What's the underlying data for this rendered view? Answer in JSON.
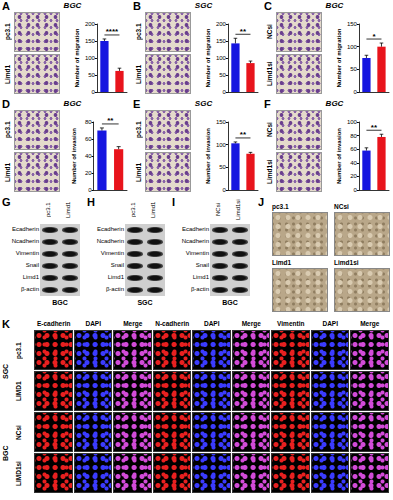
{
  "chart_data": [
    {
      "type": "bar",
      "panel": "A",
      "title": "BGC",
      "categories": [
        "pc3.1",
        "Limd1"
      ],
      "values": [
        150,
        62
      ],
      "errors": [
        6,
        8
      ],
      "colors": [
        "#1616e0",
        "#e8141c"
      ],
      "ylabel": "Number of migration",
      "ylim": [
        0,
        200
      ],
      "yticks": [
        0,
        50,
        100,
        150,
        200
      ],
      "significance": "****",
      "grid": false,
      "tick_labels": "y"
    },
    {
      "type": "bar",
      "panel": "B",
      "title": "SGC",
      "categories": [
        "pc3.1",
        "Limd1"
      ],
      "values": [
        143,
        85
      ],
      "errors": [
        15,
        6
      ],
      "colors": [
        "#1616e0",
        "#e8141c"
      ],
      "ylabel": "Number of migration",
      "ylim": [
        0,
        200
      ],
      "yticks": [
        0,
        50,
        100,
        150,
        200
      ],
      "significance": "**",
      "grid": false,
      "tick_labels": "y"
    },
    {
      "type": "bar",
      "panel": "C",
      "title": "BGC",
      "categories": [
        "NCsi",
        "Limd1si"
      ],
      "values": [
        75,
        100
      ],
      "errors": [
        6,
        8
      ],
      "colors": [
        "#1616e0",
        "#e8141c"
      ],
      "ylabel": "Number of migration",
      "ylim": [
        0,
        150
      ],
      "yticks": [
        0,
        50,
        100,
        150
      ],
      "significance": "*",
      "grid": false,
      "tick_labels": "y"
    },
    {
      "type": "bar",
      "panel": "D",
      "title": "BGC",
      "categories": [
        "pc3.1",
        "Limd1"
      ],
      "values": [
        70,
        48
      ],
      "errors": [
        3,
        3
      ],
      "colors": [
        "#1616e0",
        "#e8141c"
      ],
      "ylabel": "Number of invasion",
      "ylim": [
        0,
        80
      ],
      "yticks": [
        0,
        20,
        40,
        60,
        80
      ],
      "significance": "**",
      "grid": false,
      "tick_labels": "y"
    },
    {
      "type": "bar",
      "panel": "E",
      "title": "SGC",
      "categories": [
        "pc3.1",
        "Limd1"
      ],
      "values": [
        103,
        80
      ],
      "errors": [
        3,
        3
      ],
      "colors": [
        "#1616e0",
        "#e8141c"
      ],
      "ylabel": "Number of invasion",
      "ylim": [
        0,
        150
      ],
      "yticks": [
        0,
        50,
        100,
        150
      ],
      "significance": "**",
      "grid": false,
      "tick_labels": "y"
    },
    {
      "type": "bar",
      "panel": "F",
      "title": "BGC",
      "categories": [
        "NCsi",
        "Limd1si"
      ],
      "values": [
        58,
        78
      ],
      "errors": [
        4,
        4
      ],
      "colors": [
        "#1616e0",
        "#e8141c"
      ],
      "ylabel": "Number of invasion",
      "ylim": [
        0,
        100
      ],
      "yticks": [
        0,
        20,
        40,
        60,
        80,
        100
      ],
      "significance": "**",
      "grid": false,
      "tick_labels": "y"
    }
  ],
  "figure": {
    "blots": [
      {
        "panel": "G",
        "cell": "BGC",
        "lanes": [
          "pc3.1",
          "Limd1"
        ],
        "proteins": [
          "Ecadherin",
          "Ncadherin",
          "Vimentin",
          "Snail",
          "Limd1",
          "β-actin"
        ]
      },
      {
        "panel": "H",
        "cell": "SGC",
        "lanes": [
          "pc3.1",
          "Limd1"
        ],
        "proteins": [
          "Ecadherin",
          "Ncadherin",
          "Vimentin",
          "Snail",
          "Limd1",
          "β-actin"
        ]
      },
      {
        "panel": "I",
        "cell": "BGC",
        "lanes": [
          "NCsi",
          "Limd1si"
        ],
        "proteins": [
          "Ecadherin",
          "Ncadherin",
          "Vimentin",
          "Snail",
          "Limd1",
          "β-actin"
        ]
      }
    ],
    "images": {
      "panel": "J",
      "labels": [
        "pc3.1",
        "NCsi",
        "Limd1",
        "Limd1si"
      ]
    },
    "immunofluorescence": {
      "panel": "K",
      "columns": [
        "E-cadherin",
        "DAPI",
        "Merge",
        "N-cadherin",
        "DAPI",
        "Merge",
        "Vimentin",
        "DAPI",
        "Merge"
      ],
      "groups": [
        {
          "name": "SGC",
          "rows": [
            "pc3.1",
            "LIMD1"
          ]
        },
        {
          "name": "BGC",
          "rows": [
            "NCsi",
            "LIMD1si"
          ]
        }
      ]
    }
  }
}
